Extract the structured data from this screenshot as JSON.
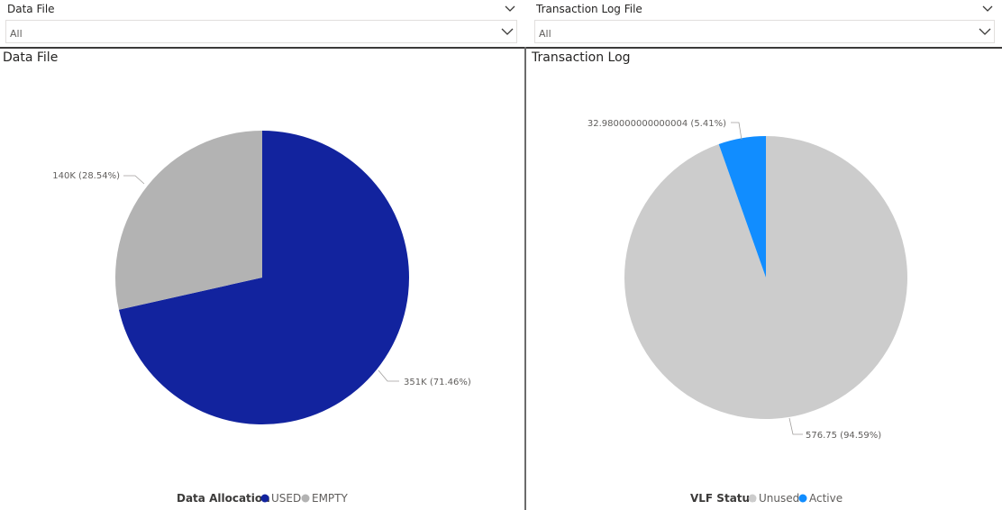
{
  "slicers": [
    {
      "title": "Data File",
      "value": "All",
      "chevron_icon": "chevron-down-icon"
    },
    {
      "title": "Transaction Log File",
      "value": "All",
      "chevron_icon": "chevron-down-icon"
    }
  ],
  "panels": [
    {
      "title": "Data File"
    },
    {
      "title": "Transaction Log"
    }
  ],
  "chart_data": [
    {
      "type": "pie",
      "title": "Data File",
      "legend_title": "Data Allocation",
      "legend_position": "bottom-center",
      "slices": [
        {
          "name": "USED",
          "value": 351000,
          "label": "351K (71.46%)",
          "color": "#12239e"
        },
        {
          "name": "EMPTY",
          "value": 140000,
          "label": "140K (28.54%)",
          "color": "#b3b3b3"
        }
      ]
    },
    {
      "type": "pie",
      "title": "Transaction Log",
      "legend_title": "VLF Status",
      "legend_position": "bottom-center",
      "slices": [
        {
          "name": "Unused",
          "value": 576.75,
          "label": "576.75 (94.59%)",
          "color": "#cccccc"
        },
        {
          "name": "Active",
          "value": 32.980000000000004,
          "label": "32.980000000000004 (5.41%)",
          "color": "#118dff"
        }
      ]
    }
  ]
}
